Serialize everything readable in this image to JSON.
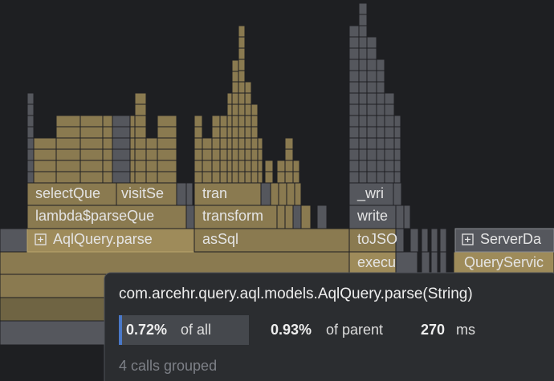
{
  "frames": [
    {
      "label": "selectQue"
    },
    {
      "label": "visitSe"
    },
    {
      "label": "tran"
    },
    {
      "label": "_wri"
    },
    {
      "label": "lambda$parseQue"
    },
    {
      "label": "transform"
    },
    {
      "label": "write"
    },
    {
      "label": "AqlQuery.parse"
    },
    {
      "label": "asSql"
    },
    {
      "label": "toJSO"
    },
    {
      "label": "ServerDa"
    },
    {
      "label": "execu"
    },
    {
      "label": "QueryServic"
    }
  ],
  "tooltip": {
    "title": "com.arcehr.query.aql.models.AqlQuery.parse(String)",
    "share_of_all": "0.72%",
    "of_all": "of all",
    "share_of_parent": "0.93%",
    "of_parent": "of parent",
    "duration": "270",
    "unit": "ms",
    "calls": "4 calls grouped"
  }
}
